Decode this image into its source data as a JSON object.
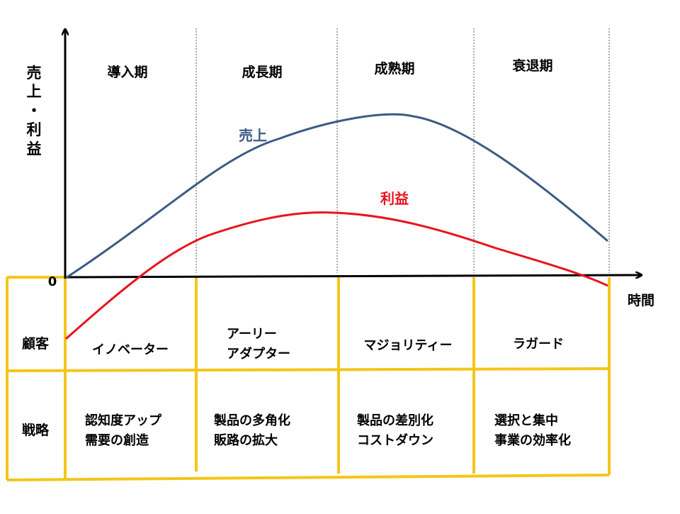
{
  "axes": {
    "y_label_chars": [
      "売",
      "上",
      "・",
      "利",
      "益"
    ],
    "x_label": "時間",
    "origin_label": "0"
  },
  "stages": [
    "導入期",
    "成長期",
    "成熟期",
    "衰退期"
  ],
  "curves": {
    "sales": {
      "label": "売上",
      "color": "#3c5a85"
    },
    "profit": {
      "label": "利益",
      "color": "#e8141e"
    }
  },
  "table": {
    "border_color": "#f5c518",
    "rows": [
      {
        "header": "顧客",
        "cells": [
          [
            "イノベーター"
          ],
          [
            "アーリー",
            "アダプター"
          ],
          [
            "マジョリティー"
          ],
          [
            "ラガード"
          ]
        ]
      },
      {
        "header": "戦略",
        "cells": [
          [
            "認知度アップ",
            "需要の創造"
          ],
          [
            "製品の多角化",
            "販路の拡大"
          ],
          [
            "製品の差別化",
            "コストダウン"
          ],
          [
            "選択と集中",
            "事業の効率化"
          ]
        ]
      }
    ]
  }
}
